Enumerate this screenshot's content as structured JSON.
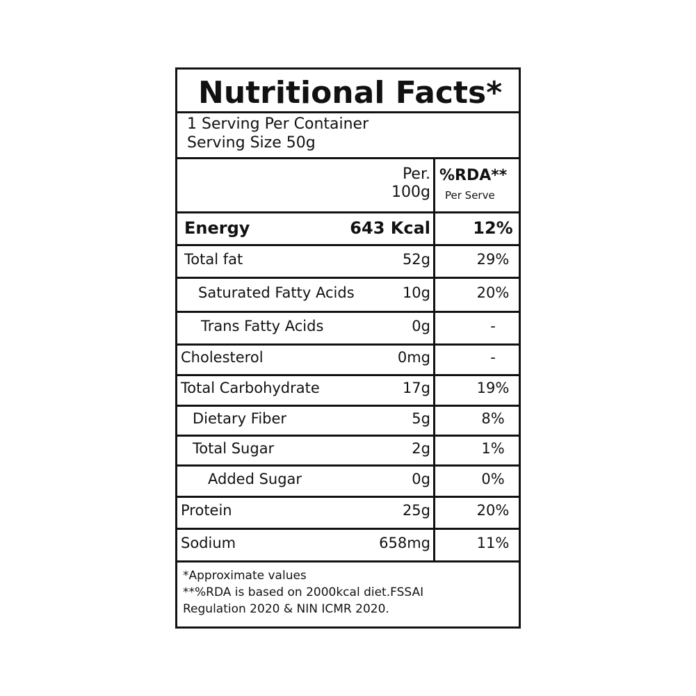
{
  "title": "Nutritional Facts*",
  "serving": [
    "1 Serving Per Container",
    "Serving Size 50g"
  ],
  "header": {
    "per": [
      "Per.",
      "100g"
    ],
    "rda": "%RDA**",
    "rda_sub": "Per Serve"
  },
  "rows": [
    {
      "name": "Energy",
      "amount": "643 Kcal",
      "rda": "12%"
    },
    {
      "name": "Total fat",
      "amount": "52g",
      "rda": "29%"
    },
    {
      "name": "Saturated  Fatty Acids",
      "amount": "10g",
      "rda": "20%"
    },
    {
      "name": "Trans Fatty Acids",
      "amount": "0g",
      "rda": "-"
    },
    {
      "name": "Cholesterol",
      "amount": "0mg",
      "rda": "-"
    },
    {
      "name": "Total Carbohydrate",
      "amount": "17g",
      "rda": "19%"
    },
    {
      "name": "Dietary Fiber",
      "amount": "5g",
      "rda": "8%"
    },
    {
      "name": "Total Sugar",
      "amount": "2g",
      "rda": "1%"
    },
    {
      "name": "Added Sugar",
      "amount": "0g",
      "rda": "0%"
    },
    {
      "name": "Protein",
      "amount": "25g",
      "rda": "20%"
    },
    {
      "name": "Sodium",
      "amount": "658mg",
      "rda": "11%"
    }
  ],
  "footnotes": [
    "*Approximate values",
    "**%RDA is based on 2000kcal diet.FSSAI",
    "Regulation 2020 & NIN ICMR 2020."
  ]
}
